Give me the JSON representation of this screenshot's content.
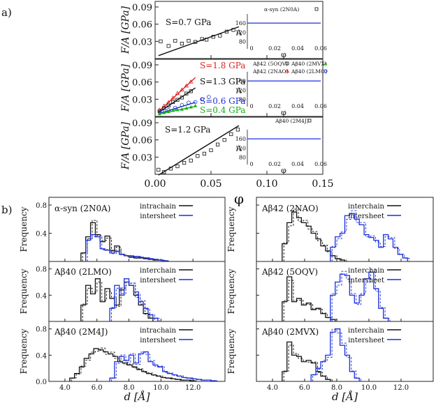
{
  "panel_a": {
    "label": "a)",
    "ylabel": "F/A [GPa]",
    "xlabel": "φ",
    "x_ticks": [
      "0.00",
      "0.05",
      "0.10",
      "0.15"
    ],
    "y_ticks": [
      "0.03",
      "0.06",
      "0.09"
    ],
    "subpanels": [
      {
        "legend": [
          "α-syn (2N0A)"
        ],
        "slope_labels": [
          {
            "text": "S=0.7 GPa"
          }
        ],
        "inset": {
          "ylabel": "A",
          "y_ticks": [
            "80",
            "120",
            "160"
          ],
          "x_ticks": [
            "0",
            "0.02",
            "0.04",
            "0.06"
          ],
          "xlabel": "φ"
        }
      },
      {
        "legend": [
          "Aβ42 (5OQV)",
          "Aβ40 (2MVX)",
          "Aβ42 (2NAO)",
          "Aβ40 (2LMO)"
        ],
        "slope_labels": [
          {
            "text": "S=1.8 GPa",
            "color": "#e02020"
          },
          {
            "text": "S=1.3 GPa",
            "color": "#111111"
          },
          {
            "text": "S=0.6 GPa",
            "color": "#2030d0"
          },
          {
            "text": "S=0.4 GPa",
            "color": "#10b010"
          }
        ],
        "inset": {
          "ylabel": "A",
          "y_ticks": [
            "80",
            "120",
            "160"
          ],
          "x_ticks": [
            "0",
            "0.02",
            "0.04",
            "0.06"
          ],
          "xlabel": "φ"
        }
      },
      {
        "legend": [
          "Aβ40 (2M4J)"
        ],
        "slope_labels": [
          {
            "text": "S=1.2 GPa"
          }
        ],
        "inset": {
          "ylabel": "A",
          "y_ticks": [
            "80",
            "120",
            "160"
          ],
          "x_ticks": [
            "0",
            "0.02",
            "0.04",
            "0.06"
          ],
          "xlabel": "φ"
        }
      }
    ]
  },
  "panel_b": {
    "label": "b)",
    "ylabel": "Frequency",
    "xlabel": "d [Å]",
    "x_ticks": [
      "4.0",
      "6.0",
      "8.0",
      "10.0",
      "12.0"
    ],
    "y_ticks": [
      "0.0",
      "0.4",
      "0.8"
    ],
    "legend": {
      "intra": "intrachain",
      "inter": "interchain",
      "sheet": "intersheet"
    }
  },
  "colors": {
    "black": "#111111",
    "blue": "#1a2ed8",
    "red": "#e02020",
    "green": "#10b010"
  },
  "chart_data": [
    {
      "type": "scatter",
      "title": "α-syn (2N0A)",
      "xlabel": "φ",
      "ylabel": "F/A [GPa]",
      "xlim": [
        0,
        0.15
      ],
      "ylim": [
        0,
        0.09
      ],
      "series": [
        {
          "name": "α-syn (2N0A)",
          "slope_GPa": 0.7,
          "intercept": 0.003,
          "x": [
            0.005,
            0.012,
            0.018,
            0.024,
            0.03,
            0.036,
            0.042,
            0.046,
            0.052,
            0.058,
            0.064,
            0.07
          ],
          "y": [
            0.03,
            0.022,
            0.031,
            0.026,
            0.031,
            0.029,
            0.034,
            0.033,
            0.038,
            0.04,
            0.047,
            0.05
          ]
        }
      ],
      "inset": {
        "xlim": [
          0,
          0.06
        ],
        "ylim": [
          60,
          200
        ],
        "y": 160
      }
    },
    {
      "type": "scatter",
      "title": "Aβ multi",
      "xlabel": "φ",
      "ylabel": "F/A [GPa]",
      "xlim": [
        0,
        0.15
      ],
      "ylim": [
        0,
        0.09
      ],
      "series": [
        {
          "name": "Aβ42 (2NAO)",
          "slope_GPa": 1.8,
          "intercept": 0.003,
          "marker": "triangle-open",
          "color": "red",
          "x": [
            0.004,
            0.008,
            0.012,
            0.016,
            0.02,
            0.024,
            0.028,
            0.032
          ],
          "y": [
            0.011,
            0.018,
            0.024,
            0.032,
            0.04,
            0.046,
            0.053,
            0.06
          ]
        },
        {
          "name": "Aβ42 (5OQV)",
          "slope_GPa": 1.3,
          "intercept": 0.003,
          "marker": "square-open",
          "color": "black",
          "x": [
            0.004,
            0.008,
            0.012,
            0.016,
            0.02,
            0.024,
            0.028,
            0.032
          ],
          "y": [
            0.009,
            0.014,
            0.019,
            0.025,
            0.029,
            0.033,
            0.04,
            0.044
          ]
        },
        {
          "name": "Aβ40 (2LMO)",
          "slope_GPa": 0.6,
          "intercept": 0.003,
          "marker": "circle-open",
          "color": "blue",
          "x": [
            0.006,
            0.012,
            0.018,
            0.024,
            0.03,
            0.036,
            0.042,
            0.048
          ],
          "y": [
            0.008,
            0.011,
            0.015,
            0.02,
            0.024,
            0.025,
            0.03,
            0.034
          ]
        },
        {
          "name": "Aβ40 (2MVX)",
          "slope_GPa": 0.4,
          "intercept": 0.003,
          "marker": "triangle-filled",
          "color": "green",
          "x": [
            0.004,
            0.008,
            0.012,
            0.016,
            0.02,
            0.024,
            0.028,
            0.032,
            0.036
          ],
          "y": [
            0.004,
            0.006,
            0.008,
            0.01,
            0.011,
            0.012,
            0.014,
            0.016,
            0.018
          ]
        }
      ],
      "inset": {
        "xlim": [
          0,
          0.06
        ],
        "ylim": [
          60,
          200
        ],
        "y": 160
      }
    },
    {
      "type": "scatter",
      "title": "Aβ40 (2M4J)",
      "xlabel": "φ",
      "ylabel": "F/A [GPa]",
      "xlim": [
        0,
        0.15
      ],
      "ylim": [
        0,
        0.09
      ],
      "series": [
        {
          "name": "Aβ40 (2M4J)",
          "slope_GPa": 1.2,
          "intercept": -0.005,
          "x": [
            0.003,
            0.008,
            0.014,
            0.02,
            0.026,
            0.032,
            0.038,
            0.044,
            0.05,
            0.056,
            0.062,
            0.068,
            0.074
          ],
          "y": [
            0.008,
            0.004,
            0.01,
            0.014,
            0.02,
            0.024,
            0.032,
            0.036,
            0.042,
            0.052,
            0.06,
            0.07,
            0.078
          ]
        }
      ],
      "inset": {
        "xlim": [
          0,
          0.06
        ],
        "ylim": [
          60,
          200
        ],
        "y": 160
      }
    },
    {
      "type": "histogram",
      "title": "α-syn (2N0A)",
      "xlim": [
        3,
        14
      ],
      "ylim": [
        0,
        0.85
      ],
      "series": [
        {
          "name": "intrachain",
          "color": "black",
          "start": 5.0,
          "width": 0.3,
          "values": [
            0.12,
            0.35,
            0.55,
            0.38,
            0.28,
            0.36,
            0.15,
            0.22,
            0.1,
            0.08,
            0.06,
            0.05,
            0.05,
            0.04,
            0.03,
            0.02,
            0.02,
            0.01
          ]
        },
        {
          "name": "intersheet",
          "color": "blue",
          "start": 5.3,
          "width": 0.3,
          "values": [
            0.3,
            0.38,
            0.35,
            0.18,
            0.16,
            0.12,
            0.14,
            0.1,
            0.08,
            0.08,
            0.07,
            0.06,
            0.05,
            0.04,
            0.03,
            0.02,
            0.01
          ]
        }
      ]
    },
    {
      "type": "histogram",
      "title": "Aβ42 (2NAO)",
      "xlim": [
        3,
        14
      ],
      "ylim": [
        0,
        0.85
      ],
      "series": [
        {
          "name": "interchain",
          "color": "black",
          "start": 4.6,
          "width": 0.3,
          "values": [
            0.25,
            0.55,
            0.7,
            0.62,
            0.55,
            0.5,
            0.4,
            0.32,
            0.22,
            0.15,
            0.08,
            0.04,
            0.02
          ]
        },
        {
          "name": "intersheet",
          "color": "blue",
          "start": 7.6,
          "width": 0.3,
          "values": [
            0.2,
            0.35,
            0.4,
            0.65,
            0.68,
            0.6,
            0.52,
            0.38,
            0.34,
            0.3,
            0.2,
            0.38,
            0.32,
            0.2,
            0.1,
            0.05
          ]
        }
      ]
    },
    {
      "type": "histogram",
      "title": "Aβ40 (2LMO)",
      "xlim": [
        3,
        14
      ],
      "ylim": [
        0,
        0.85
      ],
      "series": [
        {
          "name": "interchain",
          "color": "black",
          "start": 5.0,
          "width": 0.3,
          "values": [
            0.25,
            0.55,
            0.42,
            0.65,
            0.3,
            0.5,
            0.35,
            0.25,
            0.48,
            0.6,
            0.55,
            0.4,
            0.25,
            0.12,
            0.05
          ]
        },
        {
          "name": "intersheet",
          "color": "blue",
          "start": 6.8,
          "width": 0.3,
          "values": [
            0.2,
            0.55,
            0.4,
            0.65,
            0.55,
            0.45,
            0.3,
            0.2,
            0.1,
            0.05
          ]
        }
      ]
    },
    {
      "type": "histogram",
      "title": "Aβ42 (5OQV)",
      "xlim": [
        3,
        14
      ],
      "ylim": [
        0,
        0.85
      ],
      "series": [
        {
          "name": "interchain",
          "color": "black",
          "start": 4.6,
          "width": 0.3,
          "values": [
            0.3,
            0.68,
            0.3,
            0.35,
            0.25,
            0.28,
            0.18,
            0.2,
            0.12,
            0.06,
            0.03
          ]
        },
        {
          "name": "intersheet",
          "color": "blue",
          "start": 7.6,
          "width": 0.3,
          "values": [
            0.4,
            0.6,
            0.72,
            0.7,
            0.4,
            0.28,
            0.4,
            0.65,
            0.75,
            0.5,
            0.2,
            0.05
          ]
        }
      ]
    },
    {
      "type": "histogram",
      "title": "Aβ40 (2M4J)",
      "xlim": [
        3,
        14
      ],
      "ylim": [
        0,
        0.85
      ],
      "series": [
        {
          "name": "intrachain",
          "color": "black",
          "start": 4.3,
          "width": 0.3,
          "values": [
            0.05,
            0.12,
            0.22,
            0.35,
            0.42,
            0.5,
            0.48,
            0.45,
            0.42,
            0.38,
            0.3,
            0.28,
            0.25,
            0.22,
            0.18,
            0.15,
            0.12,
            0.1,
            0.08,
            0.06,
            0.05,
            0.04,
            0.03,
            0.02,
            0.02,
            0.01
          ]
        },
        {
          "name": "intersheet",
          "color": "blue",
          "start": 6.8,
          "width": 0.3,
          "values": [
            0.05,
            0.3,
            0.38,
            0.32,
            0.4,
            0.28,
            0.42,
            0.45,
            0.3,
            0.25,
            0.22,
            0.15,
            0.12,
            0.1,
            0.08,
            0.06,
            0.05,
            0.04,
            0.03,
            0.02,
            0.02,
            0.01
          ]
        }
      ]
    },
    {
      "type": "histogram",
      "title": "Aβ40 (2MVX)",
      "xlim": [
        3,
        14
      ],
      "ylim": [
        0,
        0.85
      ],
      "series": [
        {
          "name": "interchain",
          "color": "black",
          "start": 4.6,
          "width": 0.3,
          "values": [
            0.15,
            0.6,
            0.4,
            0.38,
            0.3,
            0.32,
            0.28,
            0.15,
            0.08,
            0.03
          ]
        },
        {
          "name": "intersheet",
          "color": "blue",
          "start": 6.4,
          "width": 0.3,
          "values": [
            0.1,
            0.2,
            0.3,
            0.4,
            0.75,
            0.8,
            0.55,
            0.4,
            0.15,
            0.05
          ]
        }
      ]
    }
  ]
}
